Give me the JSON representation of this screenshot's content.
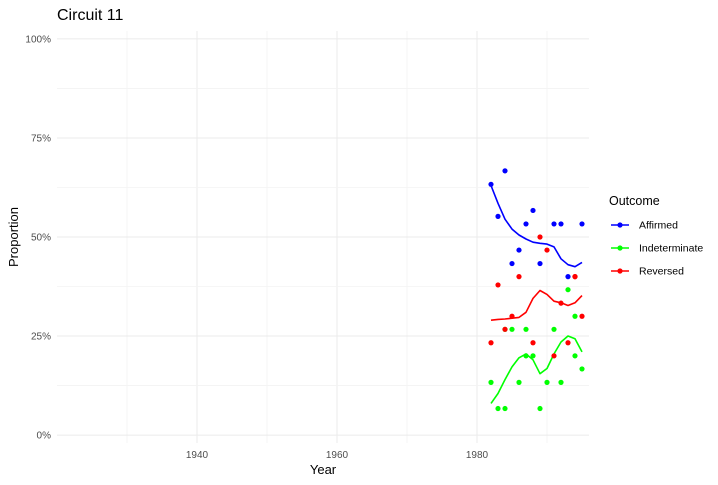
{
  "chart_data": {
    "type": "scatter",
    "title": "Circuit 11",
    "xlabel": "Year",
    "ylabel": "Proportion",
    "xlim": [
      1920,
      1996
    ],
    "ylim": [
      -0.02,
      1.02
    ],
    "x_ticks": [
      1940,
      1960,
      1980
    ],
    "x_tick_labels": [
      "1940",
      "1960",
      "1980"
    ],
    "y_ticks": [
      0,
      0.25,
      0.5,
      0.75,
      1.0
    ],
    "y_tick_labels": [
      "0%",
      "25%",
      "50%",
      "75%",
      "100%"
    ],
    "grid": true,
    "legend": {
      "title": "Outcome",
      "position": "right"
    },
    "series": [
      {
        "name": "Affirmed",
        "color": "#0000ff",
        "points": [
          [
            1982,
            0.633
          ],
          [
            1983,
            0.552
          ],
          [
            1984,
            0.667
          ],
          [
            1985,
            0.433
          ],
          [
            1986,
            0.467
          ],
          [
            1987,
            0.533
          ],
          [
            1988,
            0.567
          ],
          [
            1989,
            0.433
          ],
          [
            1991,
            0.533
          ],
          [
            1992,
            0.533
          ],
          [
            1993,
            0.4
          ],
          [
            1995,
            0.533
          ]
        ],
        "smooth": [
          [
            1982,
            0.63
          ],
          [
            1983,
            0.585
          ],
          [
            1984,
            0.545
          ],
          [
            1985,
            0.52
          ],
          [
            1986,
            0.505
          ],
          [
            1987,
            0.495
          ],
          [
            1988,
            0.487
          ],
          [
            1989,
            0.484
          ],
          [
            1990,
            0.482
          ],
          [
            1991,
            0.475
          ],
          [
            1992,
            0.445
          ],
          [
            1993,
            0.43
          ],
          [
            1994,
            0.425
          ],
          [
            1995,
            0.436
          ]
        ]
      },
      {
        "name": "Indeterminate",
        "color": "#00ff00",
        "points": [
          [
            1982,
            0.133
          ],
          [
            1983,
            0.067
          ],
          [
            1984,
            0.067
          ],
          [
            1984,
            0.267
          ],
          [
            1985,
            0.267
          ],
          [
            1986,
            0.133
          ],
          [
            1987,
            0.2
          ],
          [
            1987,
            0.267
          ],
          [
            1988,
            0.2
          ],
          [
            1989,
            0.067
          ],
          [
            1990,
            0.133
          ],
          [
            1991,
            0.267
          ],
          [
            1992,
            0.133
          ],
          [
            1993,
            0.367
          ],
          [
            1994,
            0.2
          ],
          [
            1994,
            0.3
          ],
          [
            1995,
            0.167
          ]
        ],
        "smooth": [
          [
            1982,
            0.08
          ],
          [
            1983,
            0.105
          ],
          [
            1984,
            0.14
          ],
          [
            1985,
            0.172
          ],
          [
            1986,
            0.195
          ],
          [
            1987,
            0.205
          ],
          [
            1988,
            0.19
          ],
          [
            1989,
            0.155
          ],
          [
            1990,
            0.168
          ],
          [
            1991,
            0.205
          ],
          [
            1992,
            0.235
          ],
          [
            1993,
            0.25
          ],
          [
            1994,
            0.243
          ],
          [
            1995,
            0.21
          ]
        ]
      },
      {
        "name": "Reversed",
        "color": "#ff0000",
        "points": [
          [
            1982,
            0.233
          ],
          [
            1983,
            0.379
          ],
          [
            1984,
            0.267
          ],
          [
            1985,
            0.3
          ],
          [
            1986,
            0.4
          ],
          [
            1988,
            0.233
          ],
          [
            1989,
            0.5
          ],
          [
            1990,
            0.467
          ],
          [
            1991,
            0.2
          ],
          [
            1992,
            0.333
          ],
          [
            1993,
            0.233
          ],
          [
            1994,
            0.4
          ],
          [
            1994,
            0.4
          ],
          [
            1995,
            0.3
          ]
        ],
        "smooth": [
          [
            1982,
            0.29
          ],
          [
            1983,
            0.292
          ],
          [
            1984,
            0.293
          ],
          [
            1985,
            0.295
          ],
          [
            1986,
            0.297
          ],
          [
            1987,
            0.31
          ],
          [
            1988,
            0.345
          ],
          [
            1989,
            0.365
          ],
          [
            1990,
            0.355
          ],
          [
            1991,
            0.338
          ],
          [
            1992,
            0.334
          ],
          [
            1993,
            0.327
          ],
          [
            1994,
            0.334
          ],
          [
            1995,
            0.352
          ]
        ]
      }
    ]
  }
}
